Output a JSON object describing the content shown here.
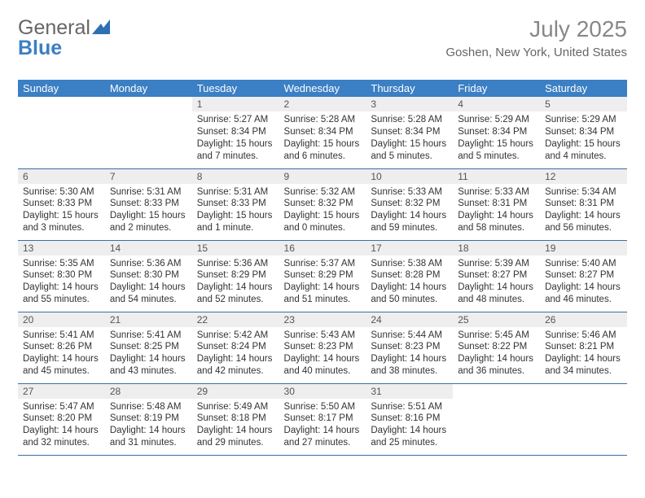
{
  "brand": {
    "part1": "General",
    "part2": "Blue"
  },
  "title": "July 2025",
  "location": "Goshen, New York, United States",
  "colors": {
    "header_bg": "#3b7fc4",
    "header_text": "#ffffff",
    "daynum_bg": "#eeeeee",
    "rule": "#3b6fa4",
    "title_color": "#888888",
    "location_color": "#666666"
  },
  "fonts": {
    "title_size": 28,
    "location_size": 15,
    "dayhead_size": 13,
    "body_size": 11.5
  },
  "day_names": [
    "Sunday",
    "Monday",
    "Tuesday",
    "Wednesday",
    "Thursday",
    "Friday",
    "Saturday"
  ],
  "weeks": [
    [
      null,
      null,
      {
        "n": "1",
        "sr": "5:27 AM",
        "ss": "8:34 PM",
        "dl": "15 hours and 7 minutes."
      },
      {
        "n": "2",
        "sr": "5:28 AM",
        "ss": "8:34 PM",
        "dl": "15 hours and 6 minutes."
      },
      {
        "n": "3",
        "sr": "5:28 AM",
        "ss": "8:34 PM",
        "dl": "15 hours and 5 minutes."
      },
      {
        "n": "4",
        "sr": "5:29 AM",
        "ss": "8:34 PM",
        "dl": "15 hours and 5 minutes."
      },
      {
        "n": "5",
        "sr": "5:29 AM",
        "ss": "8:34 PM",
        "dl": "15 hours and 4 minutes."
      }
    ],
    [
      {
        "n": "6",
        "sr": "5:30 AM",
        "ss": "8:33 PM",
        "dl": "15 hours and 3 minutes."
      },
      {
        "n": "7",
        "sr": "5:31 AM",
        "ss": "8:33 PM",
        "dl": "15 hours and 2 minutes."
      },
      {
        "n": "8",
        "sr": "5:31 AM",
        "ss": "8:33 PM",
        "dl": "15 hours and 1 minute."
      },
      {
        "n": "9",
        "sr": "5:32 AM",
        "ss": "8:32 PM",
        "dl": "15 hours and 0 minutes."
      },
      {
        "n": "10",
        "sr": "5:33 AM",
        "ss": "8:32 PM",
        "dl": "14 hours and 59 minutes."
      },
      {
        "n": "11",
        "sr": "5:33 AM",
        "ss": "8:31 PM",
        "dl": "14 hours and 58 minutes."
      },
      {
        "n": "12",
        "sr": "5:34 AM",
        "ss": "8:31 PM",
        "dl": "14 hours and 56 minutes."
      }
    ],
    [
      {
        "n": "13",
        "sr": "5:35 AM",
        "ss": "8:30 PM",
        "dl": "14 hours and 55 minutes."
      },
      {
        "n": "14",
        "sr": "5:36 AM",
        "ss": "8:30 PM",
        "dl": "14 hours and 54 minutes."
      },
      {
        "n": "15",
        "sr": "5:36 AM",
        "ss": "8:29 PM",
        "dl": "14 hours and 52 minutes."
      },
      {
        "n": "16",
        "sr": "5:37 AM",
        "ss": "8:29 PM",
        "dl": "14 hours and 51 minutes."
      },
      {
        "n": "17",
        "sr": "5:38 AM",
        "ss": "8:28 PM",
        "dl": "14 hours and 50 minutes."
      },
      {
        "n": "18",
        "sr": "5:39 AM",
        "ss": "8:27 PM",
        "dl": "14 hours and 48 minutes."
      },
      {
        "n": "19",
        "sr": "5:40 AM",
        "ss": "8:27 PM",
        "dl": "14 hours and 46 minutes."
      }
    ],
    [
      {
        "n": "20",
        "sr": "5:41 AM",
        "ss": "8:26 PM",
        "dl": "14 hours and 45 minutes."
      },
      {
        "n": "21",
        "sr": "5:41 AM",
        "ss": "8:25 PM",
        "dl": "14 hours and 43 minutes."
      },
      {
        "n": "22",
        "sr": "5:42 AM",
        "ss": "8:24 PM",
        "dl": "14 hours and 42 minutes."
      },
      {
        "n": "23",
        "sr": "5:43 AM",
        "ss": "8:23 PM",
        "dl": "14 hours and 40 minutes."
      },
      {
        "n": "24",
        "sr": "5:44 AM",
        "ss": "8:23 PM",
        "dl": "14 hours and 38 minutes."
      },
      {
        "n": "25",
        "sr": "5:45 AM",
        "ss": "8:22 PM",
        "dl": "14 hours and 36 minutes."
      },
      {
        "n": "26",
        "sr": "5:46 AM",
        "ss": "8:21 PM",
        "dl": "14 hours and 34 minutes."
      }
    ],
    [
      {
        "n": "27",
        "sr": "5:47 AM",
        "ss": "8:20 PM",
        "dl": "14 hours and 32 minutes."
      },
      {
        "n": "28",
        "sr": "5:48 AM",
        "ss": "8:19 PM",
        "dl": "14 hours and 31 minutes."
      },
      {
        "n": "29",
        "sr": "5:49 AM",
        "ss": "8:18 PM",
        "dl": "14 hours and 29 minutes."
      },
      {
        "n": "30",
        "sr": "5:50 AM",
        "ss": "8:17 PM",
        "dl": "14 hours and 27 minutes."
      },
      {
        "n": "31",
        "sr": "5:51 AM",
        "ss": "8:16 PM",
        "dl": "14 hours and 25 minutes."
      },
      null,
      null
    ]
  ],
  "labels": {
    "sunrise": "Sunrise: ",
    "sunset": "Sunset: ",
    "daylight": "Daylight: "
  }
}
